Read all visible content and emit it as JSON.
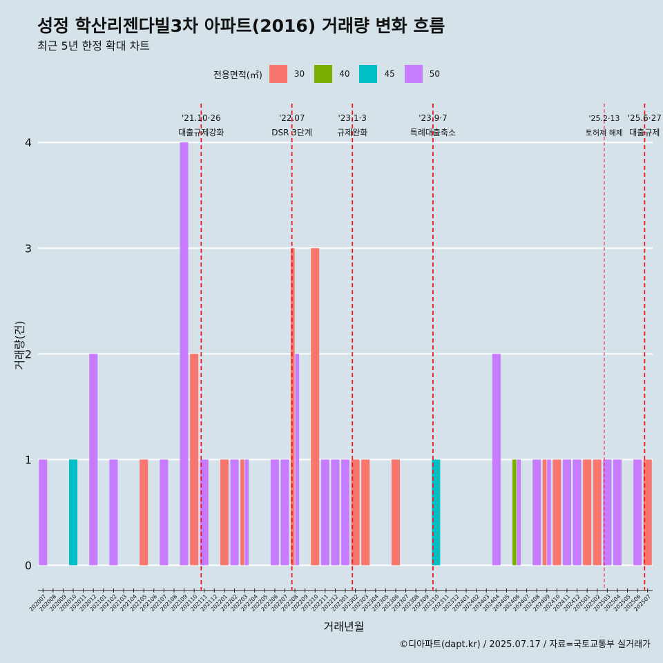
{
  "chart_data": {
    "type": "bar",
    "title": "성정 학산리젠다빌3차 아파트(2016) 거래량 변화 흐름",
    "subtitle": "최근 5년 한정 확대 차트",
    "xlabel": "거래년월",
    "ylabel": "거래량(건)",
    "ylim": [
      -0.18,
      4.4
    ],
    "yticks": [
      0,
      1,
      2,
      3,
      4
    ],
    "legend_title": "전용면적(㎡)",
    "legend": [
      {
        "name": "30",
        "color": "#f8766d"
      },
      {
        "name": "40",
        "color": "#7cae00"
      },
      {
        "name": "45",
        "color": "#00bfc4"
      },
      {
        "name": "50",
        "color": "#c77cff"
      }
    ],
    "categories": [
      "202007",
      "202008",
      "202009",
      "202010",
      "202011",
      "202012",
      "202101",
      "202102",
      "202103",
      "202104",
      "202105",
      "202106",
      "202107",
      "202108",
      "202109",
      "202110",
      "202111",
      "202112",
      "202201",
      "202202",
      "202203",
      "202204",
      "202205",
      "202206",
      "202207",
      "202208",
      "202209",
      "202210",
      "202211",
      "202212",
      "202301",
      "202302",
      "202303",
      "202304",
      "202305",
      "202306",
      "202307",
      "202308",
      "202309",
      "202310",
      "202311",
      "202312",
      "202401",
      "202402",
      "202403",
      "202404",
      "202405",
      "202406",
      "202407",
      "202408",
      "202409",
      "202410",
      "202411",
      "202412",
      "202501",
      "202502",
      "202503",
      "202504",
      "202505",
      "202506",
      "202507"
    ],
    "bars": [
      {
        "month": "202007",
        "segments": [
          {
            "area": "50",
            "count": 1
          }
        ]
      },
      {
        "month": "202010",
        "segments": [
          {
            "area": "45",
            "count": 1
          }
        ]
      },
      {
        "month": "202012",
        "segments": [
          {
            "area": "50",
            "count": 2
          }
        ]
      },
      {
        "month": "202102",
        "segments": [
          {
            "area": "50",
            "count": 1
          }
        ]
      },
      {
        "month": "202105",
        "segments": [
          {
            "area": "30",
            "count": 1
          }
        ]
      },
      {
        "month": "202107",
        "segments": [
          {
            "area": "50",
            "count": 1
          }
        ]
      },
      {
        "month": "202109",
        "segments": [
          {
            "area": "50",
            "count": 4
          }
        ]
      },
      {
        "month": "202110",
        "segments": [
          {
            "area": "30",
            "count": 2
          }
        ]
      },
      {
        "month": "202111",
        "segments": [
          {
            "area": "50",
            "count": 1
          }
        ]
      },
      {
        "month": "202201",
        "segments": [
          {
            "area": "30",
            "count": 1
          }
        ]
      },
      {
        "month": "202202",
        "segments": [
          {
            "area": "50",
            "count": 1
          }
        ]
      },
      {
        "month": "202203",
        "segments": [
          {
            "area": "30",
            "count": 1
          },
          {
            "area": "50",
            "count": 1
          }
        ]
      },
      {
        "month": "202206",
        "segments": [
          {
            "area": "50",
            "count": 1
          }
        ]
      },
      {
        "month": "202207",
        "segments": [
          {
            "area": "50",
            "count": 1
          }
        ]
      },
      {
        "month": "202208",
        "segments": [
          {
            "area": "30",
            "count": 3
          },
          {
            "area": "50",
            "count": 2
          }
        ]
      },
      {
        "month": "202210",
        "segments": [
          {
            "area": "30",
            "count": 3
          }
        ]
      },
      {
        "month": "202211",
        "segments": [
          {
            "area": "50",
            "count": 1
          }
        ]
      },
      {
        "month": "202212",
        "segments": [
          {
            "area": "50",
            "count": 1
          }
        ]
      },
      {
        "month": "202301",
        "segments": [
          {
            "area": "50",
            "count": 1
          }
        ]
      },
      {
        "month": "202302",
        "segments": [
          {
            "area": "30",
            "count": 1
          }
        ]
      },
      {
        "month": "202303",
        "segments": [
          {
            "area": "30",
            "count": 1
          }
        ]
      },
      {
        "month": "202306",
        "segments": [
          {
            "area": "30",
            "count": 1
          }
        ]
      },
      {
        "month": "202310",
        "segments": [
          {
            "area": "45",
            "count": 1
          }
        ]
      },
      {
        "month": "202404",
        "segments": [
          {
            "area": "50",
            "count": 2
          }
        ]
      },
      {
        "month": "202406",
        "segments": [
          {
            "area": "40",
            "count": 1
          },
          {
            "area": "50",
            "count": 1
          }
        ]
      },
      {
        "month": "202408",
        "segments": [
          {
            "area": "50",
            "count": 1
          }
        ]
      },
      {
        "month": "202409",
        "segments": [
          {
            "area": "30",
            "count": 1
          },
          {
            "area": "50",
            "count": 1
          }
        ]
      },
      {
        "month": "202410",
        "segments": [
          {
            "area": "30",
            "count": 1
          }
        ]
      },
      {
        "month": "202411",
        "segments": [
          {
            "area": "50",
            "count": 1
          }
        ]
      },
      {
        "month": "202412",
        "segments": [
          {
            "area": "50",
            "count": 1
          }
        ]
      },
      {
        "month": "202501",
        "segments": [
          {
            "area": "30",
            "count": 1
          }
        ]
      },
      {
        "month": "202502",
        "segments": [
          {
            "area": "30",
            "count": 1
          }
        ]
      },
      {
        "month": "202503",
        "segments": [
          {
            "area": "50",
            "count": 1
          }
        ]
      },
      {
        "month": "202504",
        "segments": [
          {
            "area": "50",
            "count": 1
          }
        ]
      },
      {
        "month": "202506",
        "segments": [
          {
            "area": "50",
            "count": 1
          }
        ]
      },
      {
        "month": "202507",
        "segments": [
          {
            "area": "30",
            "count": 1
          }
        ]
      }
    ],
    "annotations": [
      {
        "month_pos": 15.7,
        "date": "'21.10·26",
        "label": "대출규제강화",
        "style": "dashed",
        "small": false
      },
      {
        "month_pos": 24.7,
        "date": "'22.07",
        "label": "DSR 3단계",
        "style": "dashed",
        "small": false
      },
      {
        "month_pos": 30.7,
        "date": "'23.1·3",
        "label": "규제완화",
        "style": "dashed",
        "small": false
      },
      {
        "month_pos": 38.7,
        "date": "'23.9·7",
        "label": "특례대출축소",
        "style": "dashed",
        "small": false
      },
      {
        "month_pos": 55.7,
        "date": "'25.2·13",
        "label": "토허제 해제",
        "style": "thin",
        "small": true
      },
      {
        "month_pos": 59.7,
        "date": "'25.6·27",
        "label": "대출규제",
        "style": "dashed",
        "small": false
      }
    ],
    "caption": "©디아파트(dapt.kr) / 2025.07.17 / 자료=국토교통부 실거래가"
  }
}
